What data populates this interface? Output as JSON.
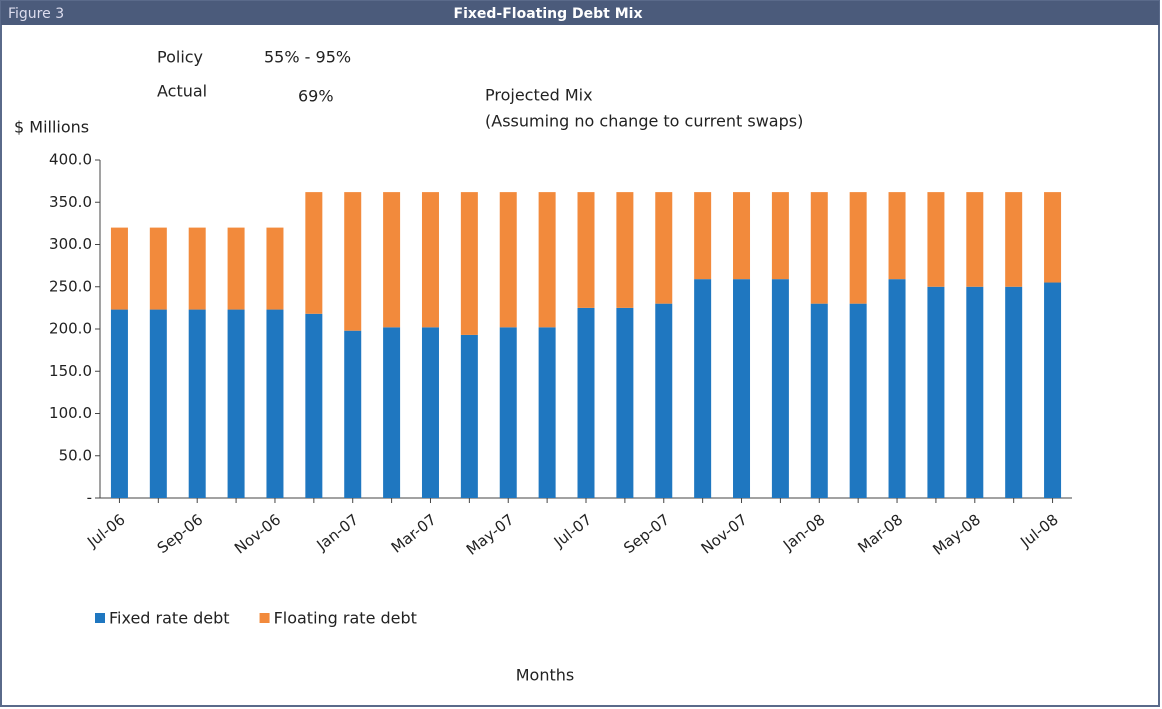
{
  "chart_data": {
    "type": "stacked_bar",
    "figure_label": "Figure 3",
    "title": "Fixed-Floating Debt Mix",
    "annotations": {
      "policy_label": "Policy",
      "policy_value": "55% - 95%",
      "actual_label": "Actual",
      "actual_value": "69%",
      "projected": "Projected Mix",
      "projected_note": "(Assuming no change to current swaps)"
    },
    "y_label": "$ Millions",
    "x_label": "Months",
    "categories": [
      "Jul-06",
      null,
      "Sep-06",
      null,
      "Nov-06",
      null,
      "Jan-07",
      null,
      "Mar-07",
      null,
      "May-07",
      null,
      "Jul-07",
      null,
      "Sep-07",
      null,
      "Nov-07",
      null,
      "Jan-08",
      null,
      "Mar-08",
      null,
      "May-08",
      null,
      "Jul-08"
    ],
    "series": [
      {
        "name": "Fixed rate debt",
        "color": "#1f77c0",
        "values": [
          223,
          223,
          223,
          223,
          223,
          218,
          198,
          202,
          202,
          193,
          202,
          202,
          225,
          225,
          230,
          259,
          259,
          259,
          230,
          230,
          259,
          250,
          250,
          250,
          255
        ]
      },
      {
        "name": "Floating rate debt",
        "color": "#f28a3c",
        "values": [
          97,
          97,
          97,
          97,
          97,
          144,
          164,
          160,
          160,
          169,
          160,
          160,
          137,
          137,
          132,
          103,
          103,
          103,
          132,
          132,
          103,
          112,
          112,
          112,
          107
        ]
      }
    ],
    "ylim": [
      0,
      400
    ],
    "yticks": [
      {
        "value": 0,
        "label": "-"
      },
      {
        "value": 50,
        "label": "50.0"
      },
      {
        "value": 100,
        "label": "100.0"
      },
      {
        "value": 150,
        "label": "150.0"
      },
      {
        "value": 200,
        "label": "200.0"
      },
      {
        "value": 250,
        "label": "250.0"
      },
      {
        "value": 300,
        "label": "300.0"
      },
      {
        "value": 350,
        "label": "350.0"
      },
      {
        "value": 400,
        "label": "400.0"
      }
    ],
    "legend": "bottom-left"
  }
}
